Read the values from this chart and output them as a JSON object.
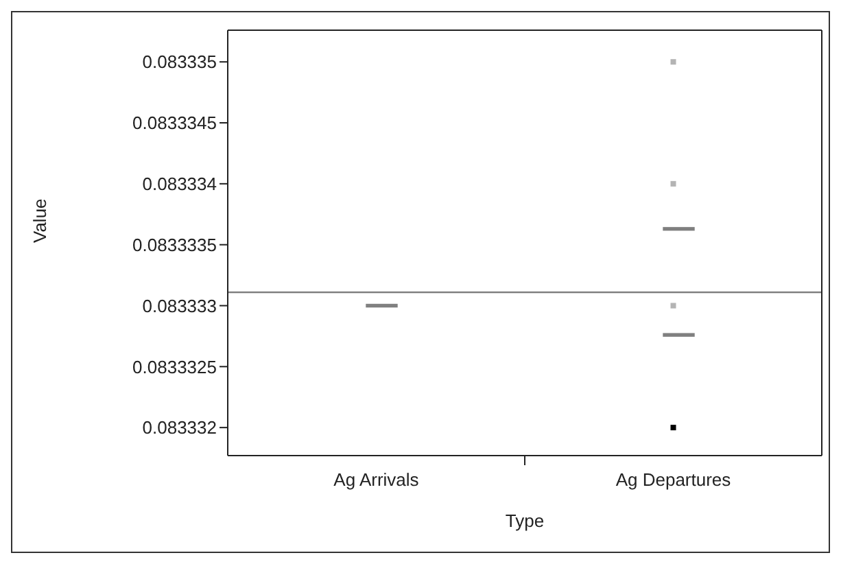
{
  "chart_data": {
    "type": "scatter",
    "xlabel": "Type",
    "ylabel": "Value",
    "categories": [
      "Ag Arrivals",
      "Ag Departures"
    ],
    "series": [
      {
        "x": [
          "Ag Departures",
          "Ag Departures",
          "Ag Departures",
          "Ag Departures"
        ],
        "values": [
          0.083335,
          0.083334,
          0.083333,
          0.083332
        ],
        "colors": [
          "#b4b4b4",
          "#b4b4b4",
          "#b4b4b4",
          "#000000"
        ],
        "marker": "square"
      },
      {
        "type": "box",
        "color": "#808080",
        "boxes": [
          {
            "low": 0.083333,
            "q1": 0.083333,
            "median": 0.083333,
            "q3": 0.083333,
            "high": 0.083333
          },
          {
            "low": 0.08333363,
            "q1": 0.08333363,
            "median": 0.08333363,
            "q3": 0.08333363,
            "high": 0.08333363
          }
        ]
      },
      {
        "type": "box",
        "color": "#808080",
        "boxes": [
          null,
          {
            "low": 0.08333276,
            "q1": 0.08333276,
            "median": 0.08333276,
            "q3": 0.08333276,
            "high": 0.08333276
          }
        ]
      }
    ],
    "ref_lines": [
      {
        "axis": "y",
        "value": 0.08333311,
        "color": "#808080"
      }
    ],
    "ylim": [
      0.08333177,
      0.08333526
    ],
    "yticks": [
      0.083332,
      0.0833325,
      0.083333,
      0.0833335,
      0.083334,
      0.0833345,
      0.083335
    ]
  }
}
